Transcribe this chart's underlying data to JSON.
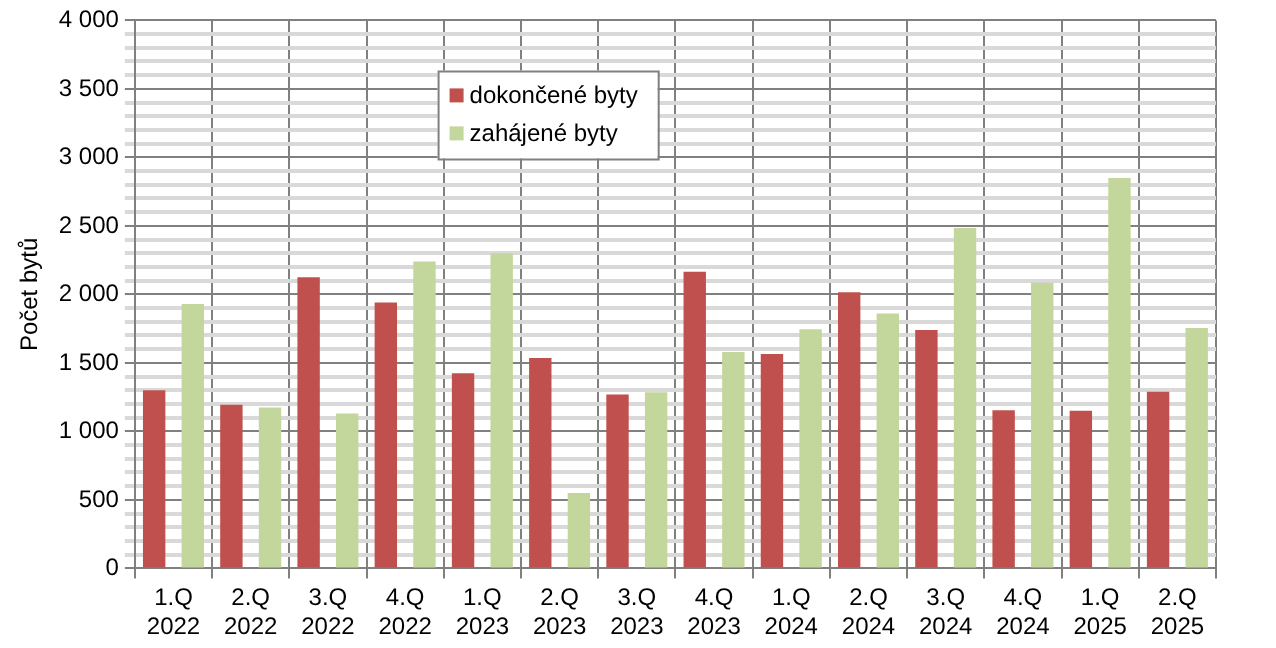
{
  "chart_data": {
    "type": "bar",
    "ylabel": "Počet bytů",
    "categories": [
      "1.Q 2022",
      "2.Q 2022",
      "3.Q 2022",
      "4.Q 2022",
      "1.Q 2023",
      "2.Q 2023",
      "3.Q 2023",
      "4.Q 2023",
      "1.Q 2024",
      "2.Q 2024",
      "3.Q 2024",
      "4.Q 2024",
      "1.Q 2025",
      "2.Q 2025"
    ],
    "series": [
      {
        "name": "dokončené byty",
        "color": "#c0504d",
        "values": [
          1300,
          1195,
          2125,
          1940,
          1425,
          1535,
          1270,
          2165,
          1565,
          2015,
          1740,
          1155,
          1150,
          1290
        ]
      },
      {
        "name": "zahájené byty",
        "color": "#c3d69b",
        "values": [
          1930,
          1175,
          1130,
          2240,
          2300,
          550,
          1285,
          1580,
          1745,
          1860,
          2485,
          2085,
          2850,
          1755
        ]
      }
    ],
    "ylim": [
      0,
      4000
    ],
    "yticks": [
      {
        "value": 0,
        "label": "0"
      },
      {
        "value": 100,
        "label": null
      },
      {
        "value": 200,
        "label": null
      },
      {
        "value": 300,
        "label": null
      },
      {
        "value": 400,
        "label": null
      },
      {
        "value": 500,
        "label": "500"
      },
      {
        "value": 600,
        "label": null
      },
      {
        "value": 700,
        "label": null
      },
      {
        "value": 800,
        "label": null
      },
      {
        "value": 900,
        "label": null
      },
      {
        "value": 1000,
        "label": "1 000"
      },
      {
        "value": 1100,
        "label": null
      },
      {
        "value": 1200,
        "label": null
      },
      {
        "value": 1300,
        "label": null
      },
      {
        "value": 1400,
        "label": null
      },
      {
        "value": 1500,
        "label": "1 500"
      },
      {
        "value": 1600,
        "label": null
      },
      {
        "value": 1700,
        "label": null
      },
      {
        "value": 1800,
        "label": null
      },
      {
        "value": 1900,
        "label": null
      },
      {
        "value": 2000,
        "label": "2 000"
      },
      {
        "value": 2100,
        "label": null
      },
      {
        "value": 2200,
        "label": null
      },
      {
        "value": 2300,
        "label": null
      },
      {
        "value": 2400,
        "label": null
      },
      {
        "value": 2500,
        "label": "2 500"
      },
      {
        "value": 2600,
        "label": null
      },
      {
        "value": 2700,
        "label": null
      },
      {
        "value": 2800,
        "label": null
      },
      {
        "value": 2900,
        "label": null
      },
      {
        "value": 3000,
        "label": "3 000"
      },
      {
        "value": 3100,
        "label": null
      },
      {
        "value": 3200,
        "label": null
      },
      {
        "value": 3300,
        "label": null
      },
      {
        "value": 3400,
        "label": null
      },
      {
        "value": 3500,
        "label": "3 500"
      },
      {
        "value": 3600,
        "label": null
      },
      {
        "value": 3700,
        "label": null
      },
      {
        "value": 3800,
        "label": null
      },
      {
        "value": 3900,
        "label": null
      },
      {
        "value": 4000,
        "label": "4 000"
      }
    ],
    "grid": true,
    "legend": "top"
  }
}
